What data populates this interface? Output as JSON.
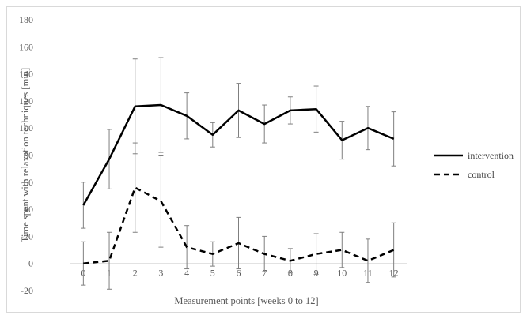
{
  "chart_data": {
    "type": "line",
    "xlabel": "Measurement points [weeks 0 to 12]",
    "ylabel": "Time spent with relaxation techniques [min]",
    "categories": [
      "0",
      "1",
      "2",
      "3",
      "4",
      "5",
      "6",
      "7",
      "8",
      "9",
      "10",
      "11",
      "12"
    ],
    "ylim": [
      -20,
      180
    ],
    "yticks": [
      -20,
      0,
      20,
      40,
      60,
      80,
      100,
      120,
      140,
      160,
      180
    ],
    "grid": false,
    "legend_position": "right",
    "series": [
      {
        "name": "intervention",
        "style": "solid",
        "color": "#000000",
        "values": [
          43,
          77,
          116,
          117,
          109,
          95,
          113,
          103,
          113,
          114,
          91,
          100,
          92
        ],
        "error": [
          17,
          22,
          35,
          35,
          17,
          9,
          20,
          14,
          10,
          17,
          14,
          16,
          20
        ]
      },
      {
        "name": "control",
        "style": "dashed",
        "color": "#000000",
        "values": [
          0,
          2,
          56,
          46,
          12,
          7,
          15,
          7,
          2,
          7,
          10,
          2,
          10
        ],
        "error": [
          16,
          21,
          33,
          34,
          16,
          9,
          19,
          13,
          9,
          15,
          13,
          16,
          20
        ]
      }
    ]
  }
}
